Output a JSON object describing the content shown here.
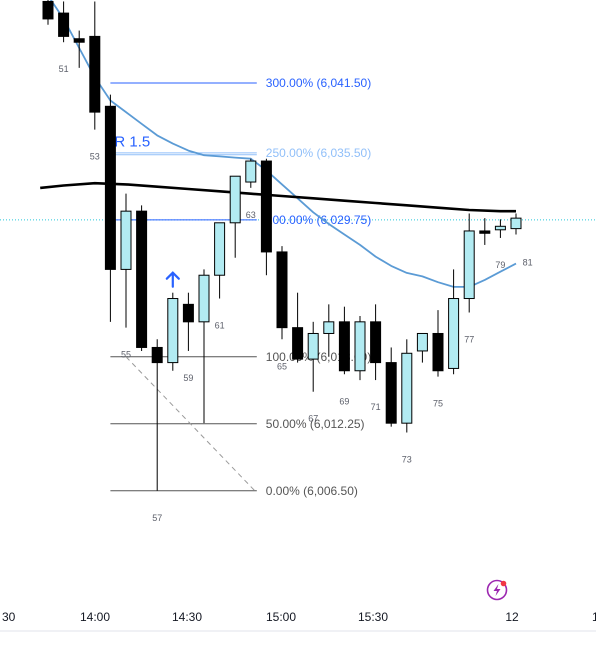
{
  "colors": {
    "bull_fill": "#b2ebf2",
    "bear_fill": "#000000",
    "outline": "#000000",
    "ma_fast": "#5b9bd5",
    "ma_slow": "#000000",
    "fib_blue": "#2962ff",
    "fib_light": "#90bff9",
    "fib_gray": "#555555",
    "level_dotted": "#26c6da",
    "arrow": "#2962ff",
    "badge": "#9c27b0"
  },
  "icons": {
    "signal_arrow": "arrow-up-icon",
    "badge": "lightning-badge-icon"
  },
  "chart_data": {
    "type": "candlestick",
    "title": "",
    "xlabel": "",
    "ylabel": "",
    "x_ticks": [
      "14:00",
      "14:30",
      "15:00",
      "15:30",
      "12"
    ],
    "x_ticks_partial": [
      "30",
      "1"
    ],
    "ylim": [
      6002.5,
      6048.0
    ],
    "grid": false,
    "candles": [
      {
        "bar": 50,
        "o": 6048.5,
        "h": 6049.0,
        "l": 6046.5,
        "c": 6047.0
      },
      {
        "bar": 51,
        "o": 6047.5,
        "h": 6048.5,
        "l": 6045.0,
        "c": 6045.5
      },
      {
        "bar": 52,
        "o": 6045.3,
        "h": 6046.0,
        "l": 6042.8,
        "c": 6045.0
      },
      {
        "bar": 53,
        "o": 6045.5,
        "h": 6048.5,
        "l": 6037.5,
        "c": 6039.0
      },
      {
        "bar": 54,
        "o": 6039.5,
        "h": 6040.5,
        "l": 6021.0,
        "c": 6025.5
      },
      {
        "bar": 55,
        "o": 6025.5,
        "h": 6032.0,
        "l": 6020.5,
        "c": 6030.5
      },
      {
        "bar": 56,
        "o": 6030.5,
        "h": 6031.0,
        "l": 6018.5,
        "c": 6018.8
      },
      {
        "bar": 57,
        "o": 6018.8,
        "h": 6019.5,
        "l": 6006.5,
        "c": 6017.5
      },
      {
        "bar": 58,
        "o": 6017.5,
        "h": 6023.5,
        "l": 6016.8,
        "c": 6023.0
      },
      {
        "bar": 59,
        "o": 6022.5,
        "h": 6023.5,
        "l": 6018.5,
        "c": 6021.0
      },
      {
        "bar": 60,
        "o": 6021.0,
        "h": 6025.5,
        "l": 6012.3,
        "c": 6025.0
      },
      {
        "bar": 61,
        "o": 6025.0,
        "h": 6029.5,
        "l": 6023.0,
        "c": 6029.5
      },
      {
        "bar": 62,
        "o": 6029.5,
        "h": 6033.5,
        "l": 6026.5,
        "c": 6033.5
      },
      {
        "bar": 63,
        "o": 6033.0,
        "h": 6035.0,
        "l": 6032.5,
        "c": 6034.8
      },
      {
        "bar": 64,
        "o": 6034.8,
        "h": 6035.0,
        "l": 6025.0,
        "c": 6027.0
      },
      {
        "bar": 65,
        "o": 6027.0,
        "h": 6027.5,
        "l": 6019.5,
        "c": 6020.5
      },
      {
        "bar": 66,
        "o": 6020.5,
        "h": 6023.5,
        "l": 6017.5,
        "c": 6017.8
      },
      {
        "bar": 67,
        "o": 6017.8,
        "h": 6021.0,
        "l": 6015.0,
        "c": 6020.0
      },
      {
        "bar": 68,
        "o": 6020.0,
        "h": 6022.5,
        "l": 6018.0,
        "c": 6021.0
      },
      {
        "bar": 69,
        "o": 6021.0,
        "h": 6022.3,
        "l": 6016.5,
        "c": 6016.8
      },
      {
        "bar": 70,
        "o": 6016.8,
        "h": 6021.5,
        "l": 6016.0,
        "c": 6021.0
      },
      {
        "bar": 71,
        "o": 6021.0,
        "h": 6022.5,
        "l": 6016.0,
        "c": 6017.5
      },
      {
        "bar": 72,
        "o": 6017.5,
        "h": 6018.8,
        "l": 6012.0,
        "c": 6012.3
      },
      {
        "bar": 73,
        "o": 6012.3,
        "h": 6019.5,
        "l": 6011.5,
        "c": 6018.3
      },
      {
        "bar": 74,
        "o": 6018.5,
        "h": 6020.0,
        "l": 6017.5,
        "c": 6020.0
      },
      {
        "bar": 75,
        "o": 6020.0,
        "h": 6022.0,
        "l": 6016.3,
        "c": 6016.8
      },
      {
        "bar": 76,
        "o": 6017.0,
        "h": 6025.5,
        "l": 6016.5,
        "c": 6023.0
      },
      {
        "bar": 77,
        "o": 6023.0,
        "h": 6030.3,
        "l": 6021.8,
        "c": 6028.8
      },
      {
        "bar": 78,
        "o": 6028.8,
        "h": 6029.9,
        "l": 6027.6,
        "c": 6028.6
      },
      {
        "bar": 79,
        "o": 6028.9,
        "h": 6029.8,
        "l": 6028.2,
        "c": 6029.2
      },
      {
        "bar": 80,
        "o": 6029.0,
        "h": 6030.3,
        "l": 6028.5,
        "c": 6029.9
      }
    ],
    "bar_number_labels": [
      {
        "bar": 51,
        "label": "51"
      },
      {
        "bar": 53,
        "label": "53"
      },
      {
        "bar": 55,
        "label": "55"
      },
      {
        "bar": 57,
        "label": "57"
      },
      {
        "bar": 59,
        "label": "59"
      },
      {
        "bar": 61,
        "label": "61"
      },
      {
        "bar": 63,
        "label": "63"
      },
      {
        "bar": 65,
        "label": "65"
      },
      {
        "bar": 67,
        "label": "67"
      },
      {
        "bar": 69,
        "label": "69"
      },
      {
        "bar": 71,
        "label": "71"
      },
      {
        "bar": 73,
        "label": "73"
      },
      {
        "bar": 75,
        "label": "75"
      },
      {
        "bar": 77,
        "label": "77"
      },
      {
        "bar": 79,
        "label": "79"
      },
      {
        "bar": 81,
        "label": "81"
      }
    ],
    "moving_averages": [
      {
        "role": "fast",
        "points": [
          [
            50,
            6049
          ],
          [
            51,
            6047
          ],
          [
            52,
            6044.5
          ],
          [
            53,
            6042
          ],
          [
            54,
            6040
          ],
          [
            55,
            6039
          ],
          [
            56,
            6038
          ],
          [
            57,
            6037
          ],
          [
            58,
            6036.3
          ],
          [
            59,
            6035.7
          ],
          [
            60,
            6035.3
          ],
          [
            61,
            6035.2
          ],
          [
            62,
            6035.1
          ],
          [
            63,
            6035.0
          ],
          [
            64,
            6034.0
          ],
          [
            65,
            6032.8
          ],
          [
            66,
            6031.6
          ],
          [
            67,
            6030.4
          ],
          [
            68,
            6029.4
          ],
          [
            69,
            6028.5
          ],
          [
            70,
            6027.6
          ],
          [
            71,
            6026.6
          ],
          [
            72,
            6025.8
          ],
          [
            73,
            6025.2
          ],
          [
            74,
            6024.9
          ],
          [
            75,
            6024.4
          ],
          [
            76,
            6024.0
          ],
          [
            77,
            6024.0
          ],
          [
            78,
            6024.6
          ],
          [
            79,
            6025.3
          ],
          [
            80,
            6026.0
          ]
        ]
      },
      {
        "role": "slow",
        "points": [
          [
            49.5,
            6032.5
          ],
          [
            51,
            6032.7
          ],
          [
            53,
            6032.9
          ],
          [
            55,
            6032.8
          ],
          [
            57,
            6032.6
          ],
          [
            59,
            6032.4
          ],
          [
            61,
            6032.2
          ],
          [
            63,
            6032.0
          ],
          [
            65,
            6031.8
          ],
          [
            67,
            6031.6
          ],
          [
            69,
            6031.4
          ],
          [
            71,
            6031.2
          ],
          [
            73,
            6031.0
          ],
          [
            75,
            6030.8
          ],
          [
            77,
            6030.6
          ],
          [
            79,
            6030.5
          ],
          [
            80,
            6030.5
          ]
        ]
      }
    ],
    "fib_levels": [
      {
        "label": "300.00% (6,041.50)",
        "price": 6041.5,
        "tone": "blue"
      },
      {
        "label": "250.00% (6,035.50)",
        "price": 6035.5,
        "tone": "light"
      },
      {
        "label": "200.00% (6,029.75)",
        "price": 6029.75,
        "tone": "blue"
      },
      {
        "label": "100.00% (6,018.00)",
        "price": 6018.0,
        "tone": "gray"
      },
      {
        "label": "50.00% (6,012.25)",
        "price": 6012.25,
        "tone": "gray"
      },
      {
        "label": "0.00% (6,006.50)",
        "price": 6006.5,
        "tone": "gray"
      }
    ],
    "target_label": "R 1.5",
    "target_price": 6036.2
  }
}
